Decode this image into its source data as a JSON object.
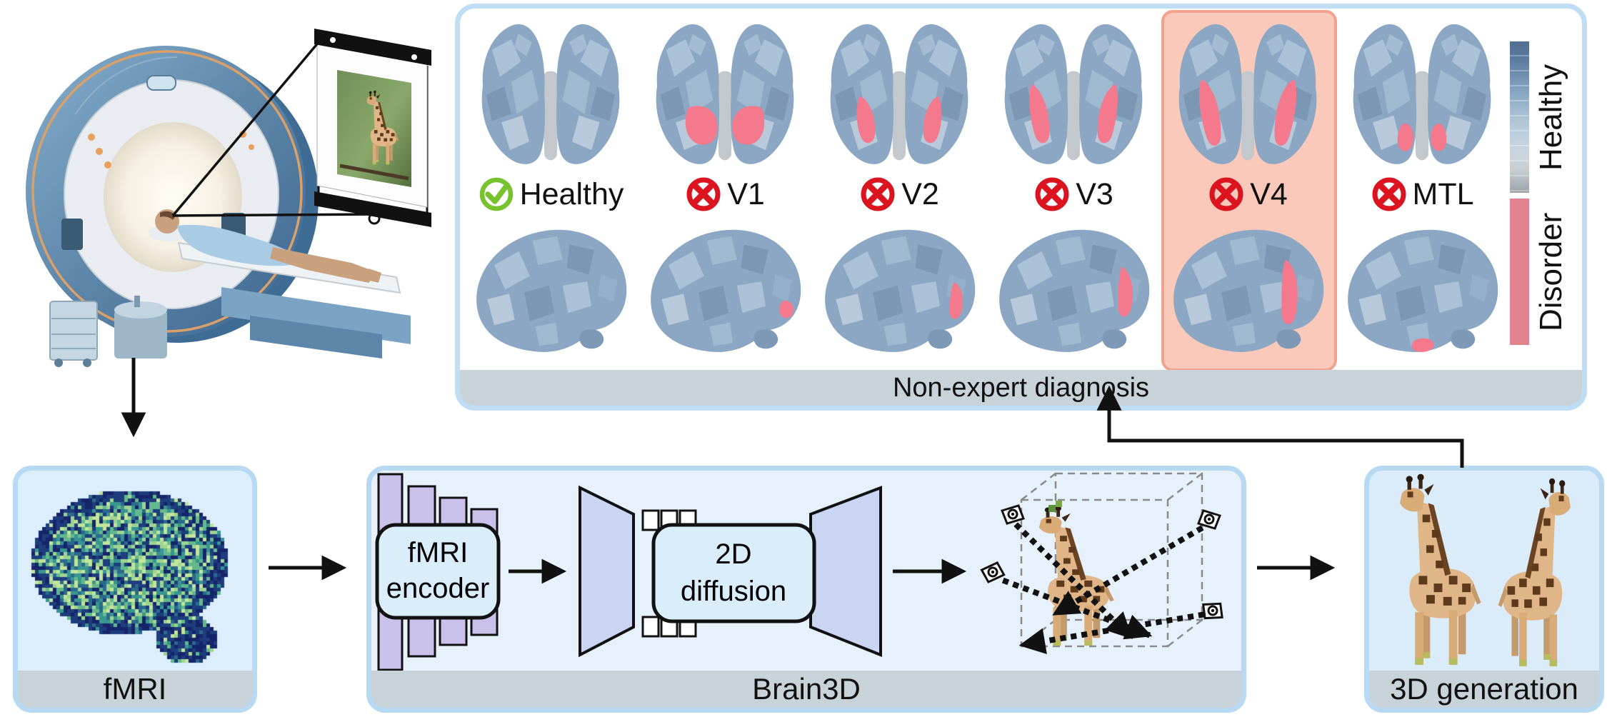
{
  "diagnosis_panel": {
    "caption": "Non-expert diagnosis",
    "columns": [
      {
        "label": "Healthy",
        "icon": "check-circle",
        "status": "healthy",
        "highlighted": false
      },
      {
        "label": "V1",
        "icon": "cross-circle",
        "status": "disorder",
        "highlighted": false
      },
      {
        "label": "V2",
        "icon": "cross-circle",
        "status": "disorder",
        "highlighted": false
      },
      {
        "label": "V3",
        "icon": "cross-circle",
        "status": "disorder",
        "highlighted": false
      },
      {
        "label": "V4",
        "icon": "cross-circle",
        "status": "disorder",
        "highlighted": true
      },
      {
        "label": "MTL",
        "icon": "cross-circle",
        "status": "disorder",
        "highlighted": false
      }
    ],
    "colorbar": {
      "healthy_label": "Healthy",
      "disorder_label": "Disorder",
      "healthy_gradient": [
        "#4e6e92",
        "#7797b6",
        "#aec5d6",
        "#cdd5da",
        "#9aa1a8"
      ],
      "disorder_color": "#e2828f"
    }
  },
  "pipeline": {
    "fmri_panel": {
      "caption": "fMRI"
    },
    "brain3d_panel": {
      "caption": "Brain3D",
      "encoder_box": {
        "line1": "fMRI",
        "line2": "encoder"
      },
      "diffusion_box": {
        "line1": "2D",
        "line2": "diffusion"
      }
    },
    "generation_panel": {
      "caption": "3D generation"
    }
  },
  "colors": {
    "healthy_check_green": "#76c32e",
    "disorder_cross_red": "#dc1420",
    "v4_highlight_fill": "#fbc9ba",
    "v4_highlight_border": "#f3a28f",
    "panel_border_blue": "#b7d9f2",
    "panel_fill_blue": "#e3f0fc",
    "caption_bar_gray": "#c8d2d9",
    "brain_base_blue": "#8ba7c4",
    "lesion_pink": "#f5798c"
  }
}
